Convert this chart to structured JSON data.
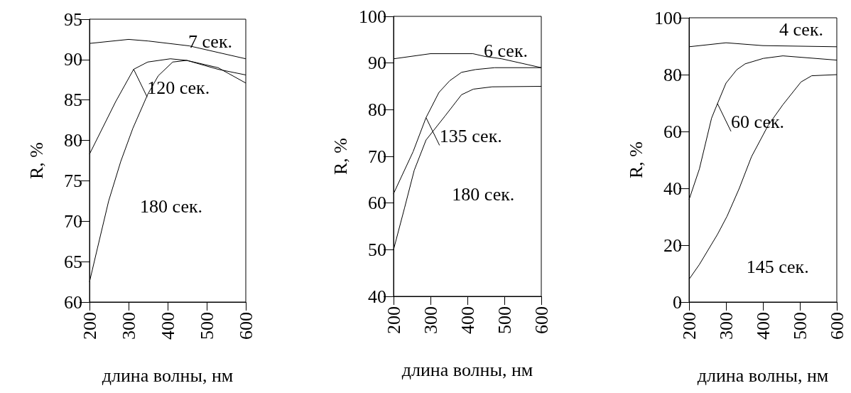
{
  "chart_data": [
    {
      "type": "line",
      "xlabel": "длина волны, нм",
      "ylabel": "R, %",
      "xlim": [
        200,
        600
      ],
      "xticks": [
        200,
        300,
        400,
        500,
        600
      ],
      "ylim": [
        60,
        95
      ],
      "yticks": [
        60,
        65,
        70,
        75,
        80,
        85,
        90,
        95
      ],
      "marker": "none",
      "line_style": "solid",
      "series": [
        {
          "name": "7 сек.",
          "color": "#000000",
          "x": [
            200,
            300,
            350,
            455,
            600
          ],
          "values": [
            92,
            92.5,
            92.3,
            91.7,
            90.1
          ]
        },
        {
          "name": "120 сек.",
          "color": "#000000",
          "x": [
            200,
            267,
            313,
            349,
            407,
            449,
            529,
            600
          ],
          "values": [
            78.3,
            84.8,
            88.8,
            89.7,
            90.1,
            89.9,
            88.8,
            88.1
          ]
        },
        {
          "name": "180 сек.",
          "color": "#000000",
          "x": [
            200,
            220,
            249,
            280,
            311,
            349,
            376,
            413,
            449,
            529,
            600
          ],
          "values": [
            62.5,
            66.6,
            72.5,
            77.4,
            81.5,
            85.7,
            88,
            89.7,
            89.9,
            89,
            87.1
          ]
        }
      ]
    },
    {
      "type": "line",
      "xlabel": "длина волны, нм",
      "ylabel": "R, %",
      "xlim": [
        200,
        600
      ],
      "xticks": [
        200,
        300,
        400,
        500,
        600
      ],
      "ylim": [
        40,
        100
      ],
      "yticks": [
        40,
        50,
        60,
        70,
        80,
        90,
        100
      ],
      "marker": "none",
      "line_style": "solid",
      "series": [
        {
          "name": "6 сек.",
          "color": "#000000",
          "x": [
            200,
            300,
            415,
            448,
            493,
            600
          ],
          "values": [
            90.9,
            92,
            92,
            91.4,
            90.9,
            89
          ]
        },
        {
          "name": "135 сек.",
          "color": "#000000",
          "x": [
            200,
            253,
            288,
            323,
            352,
            384,
            422,
            474,
            600
          ],
          "values": [
            62,
            71,
            78.3,
            83.7,
            86.2,
            88,
            88.6,
            89,
            89
          ]
        },
        {
          "name": "180 сек.",
          "color": "#000000",
          "x": [
            200,
            230,
            256,
            288,
            339,
            384,
            416,
            467,
            600
          ],
          "values": [
            50,
            59,
            67,
            73.5,
            78.6,
            83.2,
            84.4,
            84.9,
            85
          ]
        }
      ]
    },
    {
      "type": "line",
      "xlabel": "длина волны, нм",
      "ylabel": "R, %",
      "xlim": [
        200,
        600
      ],
      "xticks": [
        200,
        300,
        400,
        500,
        600
      ],
      "ylim": [
        0,
        100
      ],
      "yticks": [
        0,
        20,
        40,
        60,
        80,
        100
      ],
      "marker": "none",
      "line_style": "solid",
      "series": [
        {
          "name": "4 сек.",
          "color": "#000000",
          "x": [
            200,
            300,
            400,
            600
          ],
          "values": [
            89.8,
            91.2,
            90.2,
            89.8
          ]
        },
        {
          "name": "60 сек.",
          "color": "#000000",
          "x": [
            200,
            228,
            261,
            277,
            300,
            329,
            352,
            401,
            454,
            600
          ],
          "values": [
            36,
            46.8,
            64.7,
            69.8,
            77,
            81.7,
            83.8,
            85.7,
            86.6,
            85.1
          ]
        },
        {
          "name": "145 сек.",
          "color": "#000000",
          "x": [
            200,
            228,
            277,
            303,
            336,
            369,
            414,
            454,
            503,
            532,
            600
          ],
          "values": [
            8,
            13.2,
            23.8,
            30.2,
            40,
            51.1,
            62.1,
            69.4,
            77.4,
            79.6,
            80
          ]
        }
      ]
    }
  ]
}
